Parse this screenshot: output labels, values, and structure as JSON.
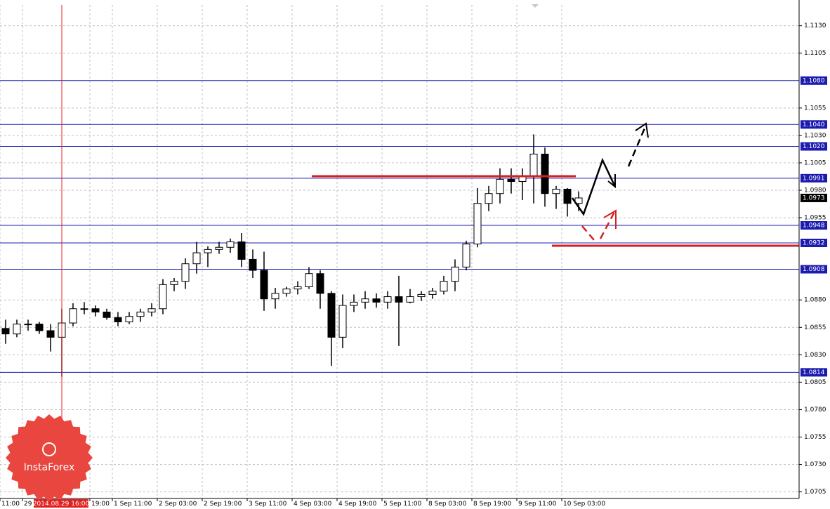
{
  "chart_data": {
    "type": "candlestick",
    "watermark": "InstaForex",
    "cursor": "2014.08.29 16:00",
    "cursor_color": "#e02020",
    "level_color": "#1b1bb0",
    "grid": true,
    "ylim": [
      1.0699,
      1.1149
    ],
    "yticks": [
      1.0705,
      {
        "value": 1.073,
        "label": "1.0730"
      },
      1.0755,
      {
        "value": 1.078,
        "label": "1.0780"
      },
      1.0805,
      {
        "value": 1.083,
        "label": "1.0830"
      },
      1.0855,
      {
        "value": 1.088,
        "label": "1.0880"
      },
      1.0955,
      {
        "value": 1.098,
        "label": "1.0980"
      },
      1.1005,
      {
        "value": 1.103,
        "label": "1.1030"
      },
      1.1055,
      1.1105,
      {
        "value": 1.113,
        "label": "1.1130"
      }
    ],
    "levels": [
      {
        "value": 1.108,
        "label": "1.1080"
      },
      {
        "value": 1.104,
        "label": "1.1040"
      },
      {
        "value": 1.102,
        "label": "1.1020"
      },
      1.0991,
      1.0948,
      1.0932,
      1.0908,
      1.0814
    ],
    "last_price": 1.0973,
    "categories": [
      "11:00",
      null,
      "29",
      null,
      null,
      "2014.08.29 16:00",
      null,
      null,
      "19:00",
      null,
      "1 Sep 11:00",
      null,
      null,
      null,
      "2 Sep 03:00",
      null,
      null,
      null,
      "2 Sep 19:00",
      null,
      null,
      null,
      "3 Sep 11:00",
      null,
      null,
      null,
      "4 Sep 03:00",
      null,
      null,
      null,
      "4 Sep 19:00",
      null,
      null,
      null,
      "5 Sep 11:00",
      null,
      null,
      null,
      "8 Sep 03:00",
      null,
      null,
      null,
      "8 Sep 19:00",
      null,
      null,
      null,
      "9 Sep 11:00",
      null,
      null,
      null,
      "10 Sep 03:00",
      null
    ],
    "open": [
      1.0854,
      1.0849,
      1.0858,
      1.0858,
      1.0852,
      1.0846,
      1.0859,
      1.0872,
      1.0872,
      1.0869,
      1.0864,
      1.086,
      1.0865,
      1.0869,
      1.0872,
      1.0894,
      1.0897,
      1.0913,
      1.0923,
      1.0926,
      1.0928,
      1.0933,
      1.0917,
      1.0907,
      1.0881,
      1.0886,
      1.089,
      1.0892,
      1.0904,
      1.0886,
      1.0846,
      1.0875,
      1.0878,
      1.0881,
      1.0878,
      1.0883,
      1.0878,
      1.0883,
      1.0885,
      1.0888,
      1.0897,
      1.091,
      1.0931,
      1.0968,
      1.0977,
      1.099,
      1.0988,
      1.0993,
      1.1013,
      1.0977,
      1.0981,
      1.0968
    ],
    "high": [
      1.0862,
      1.0862,
      1.0862,
      1.086,
      1.0858,
      1.0872,
      1.0877,
      1.0878,
      1.0875,
      1.0872,
      1.0869,
      1.0869,
      1.0872,
      1.0877,
      1.0899,
      1.09,
      1.0918,
      1.0933,
      1.0929,
      1.0933,
      1.0936,
      1.0941,
      1.0926,
      1.0924,
      1.0891,
      1.0892,
      1.0897,
      1.091,
      1.0907,
      1.0888,
      1.0885,
      1.0885,
      1.0888,
      1.0886,
      1.0888,
      1.0902,
      1.089,
      1.0888,
      1.0891,
      1.0902,
      1.0917,
      1.0934,
      1.0982,
      1.0984,
      1.1,
      1.1,
      1.1,
      1.1031,
      1.1019,
      1.0984,
      1.0982,
      1.0979
    ],
    "low": [
      1.084,
      1.0846,
      1.0852,
      1.0849,
      1.0833,
      1.081,
      1.0856,
      1.0867,
      1.0865,
      1.0862,
      1.0856,
      1.0858,
      1.086,
      1.0865,
      1.0867,
      1.0888,
      1.089,
      1.0904,
      1.091,
      1.0922,
      1.0923,
      1.091,
      1.09,
      1.087,
      1.0872,
      1.0883,
      1.0885,
      1.089,
      1.0872,
      1.082,
      1.0836,
      1.0869,
      1.0872,
      1.0873,
      1.0872,
      1.0838,
      1.0877,
      1.0879,
      1.0881,
      1.0885,
      1.0888,
      1.0907,
      1.0928,
      1.0961,
      1.0968,
      1.0977,
      1.0971,
      1.0968,
      1.0965,
      1.0963,
      1.0956,
      1.0961
    ],
    "close": [
      1.0849,
      1.0858,
      1.0858,
      1.0852,
      1.0846,
      1.0859,
      1.0872,
      1.0872,
      1.0869,
      1.0864,
      1.086,
      1.0865,
      1.0869,
      1.0872,
      1.0894,
      1.0897,
      1.0913,
      1.0923,
      1.0926,
      1.0928,
      1.0933,
      1.0917,
      1.0907,
      1.0881,
      1.0886,
      1.089,
      1.0892,
      1.0904,
      1.0886,
      1.0846,
      1.0875,
      1.0878,
      1.0881,
      1.0878,
      1.0883,
      1.0878,
      1.0883,
      1.0885,
      1.0888,
      1.0897,
      1.091,
      1.0931,
      1.0968,
      1.0977,
      1.099,
      1.0988,
      1.0993,
      1.1013,
      1.0977,
      1.0981,
      1.0968,
      1.0973
    ]
  }
}
